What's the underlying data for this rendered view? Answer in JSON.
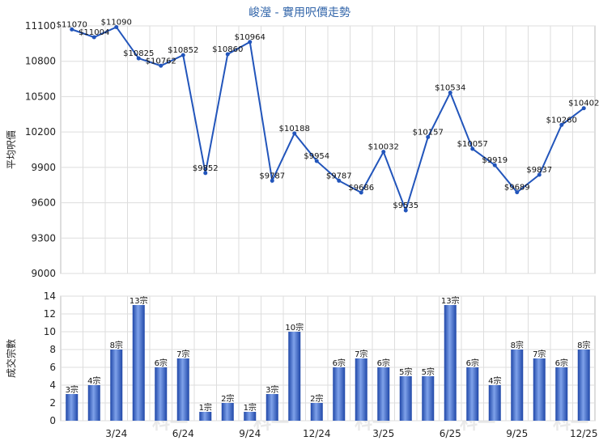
{
  "chart_data": [
    {
      "type": "line",
      "title": "峻瀅 - 實用呎價走勢",
      "ylabel": "平均呎價",
      "ylim": [
        9000,
        11100
      ],
      "yticks": [
        9000,
        9300,
        9600,
        9900,
        10200,
        10500,
        10800,
        11100
      ],
      "grid": true,
      "color": "#2255bb",
      "values": [
        11070,
        11004,
        11090,
        10825,
        10762,
        10852,
        9852,
        10860,
        10964,
        9787,
        10188,
        9954,
        9787,
        9686,
        10032,
        9535,
        10157,
        10534,
        10057,
        9919,
        9689,
        9837,
        10260,
        10402
      ],
      "labels": [
        "$11070",
        "$11004",
        "$11090",
        "$10825",
        "$10762",
        "$10852",
        "$9852",
        "$10860",
        "$10964",
        "$9787",
        "$10188",
        "$9954",
        "$9787",
        "$9686",
        "$10032",
        "$9535",
        "$10157",
        "$10534",
        "$10057",
        "$9919",
        "$9689",
        "$9837",
        "$10260",
        "$10402"
      ]
    },
    {
      "type": "bar",
      "ylabel": "成交宗數",
      "ylim": [
        0,
        14
      ],
      "yticks": [
        0,
        2,
        4,
        6,
        8,
        10,
        12,
        14
      ],
      "grid": true,
      "color": "#3366cc",
      "values": [
        3,
        4,
        8,
        13,
        6,
        7,
        1,
        2,
        1,
        3,
        10,
        2,
        6,
        7,
        6,
        5,
        5,
        13,
        6,
        4,
        8,
        7,
        6,
        8
      ],
      "labels": [
        "3宗",
        "4宗",
        "8宗",
        "13宗",
        "6宗",
        "7宗",
        "1宗",
        "2宗",
        "1宗",
        "3宗",
        "10宗",
        "2宗",
        "6宗",
        "7宗",
        "6宗",
        "5宗",
        "5宗",
        "13宗",
        "6宗",
        "4宗",
        "8宗",
        "7宗",
        "6宗",
        "8宗"
      ],
      "xtick_labels": [
        "3/24",
        "6/24",
        "9/24",
        "12/24",
        "3/25",
        "6/25",
        "9/25",
        "12/25"
      ],
      "xtick_indices": [
        2,
        5,
        8,
        11,
        14,
        17,
        20,
        23
      ]
    }
  ],
  "watermark": "科一"
}
